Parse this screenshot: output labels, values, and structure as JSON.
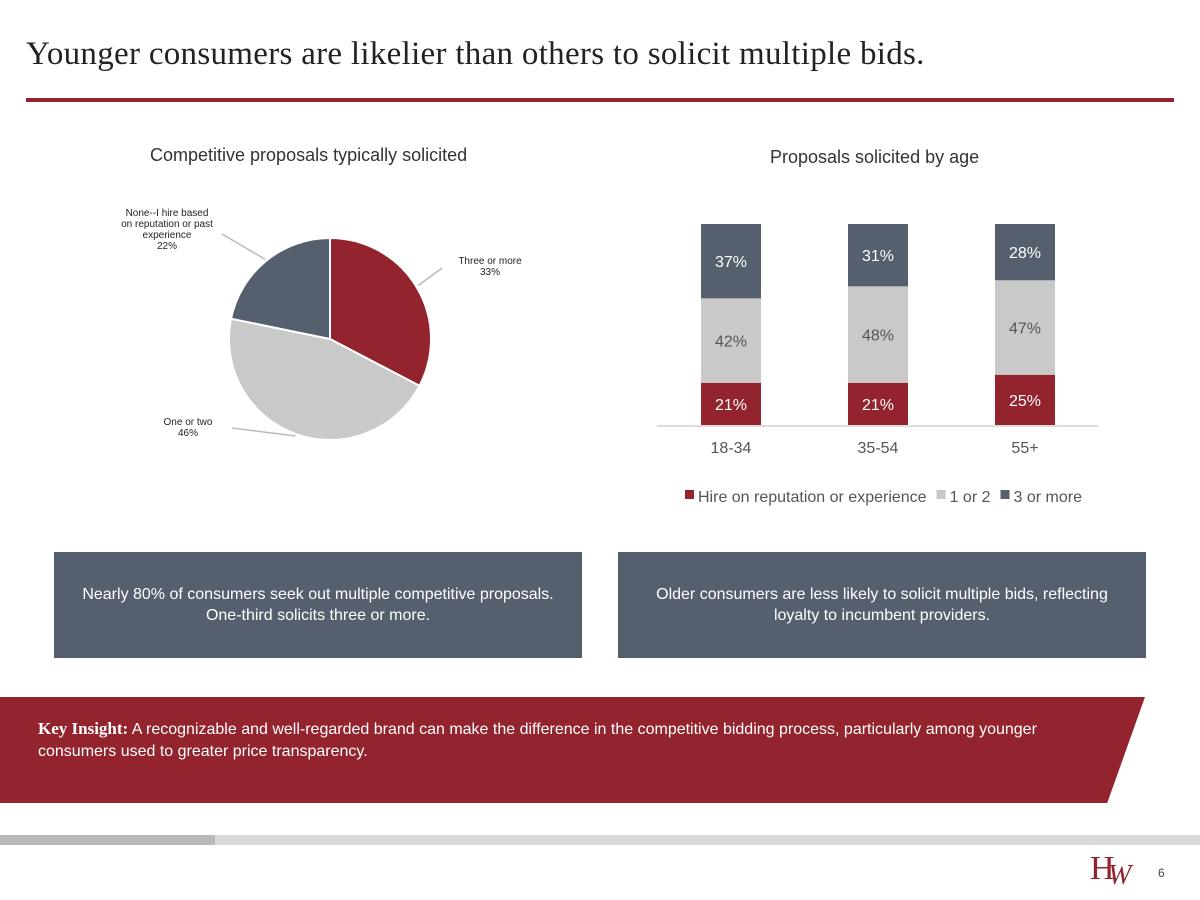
{
  "slide": {
    "title": "Younger consumers are likelier than others to solicit multiple bids.",
    "page_number": "6",
    "logo_text": "HW"
  },
  "colors": {
    "red": "#93232c",
    "light_gray": "#c9c9c9",
    "slate": "#555f6d"
  },
  "chart_data": [
    {
      "type": "pie",
      "title": "Competitive proposals typically solicited",
      "slices": [
        {
          "label_lines": [
            "Three or more",
            "33%"
          ],
          "value": 33,
          "color": "#93232c"
        },
        {
          "label_lines": [
            "One or two",
            "46%"
          ],
          "value": 46,
          "color": "#c9c9c9"
        },
        {
          "label_lines": [
            "None--I hire based",
            "on reputation or past",
            "experience",
            "22%"
          ],
          "value": 22,
          "color": "#555f6d"
        }
      ]
    },
    {
      "type": "bar",
      "stacked": true,
      "title": "Proposals solicited by age",
      "categories": [
        "18-34",
        "35-54",
        "55+"
      ],
      "series": [
        {
          "name": "Hire on reputation or experience",
          "values": [
            21,
            21,
            25
          ],
          "labels": [
            "21%",
            "21%",
            "25%"
          ],
          "color": "#93232c"
        },
        {
          "name": "1 or 2",
          "values": [
            42,
            48,
            47
          ],
          "labels": [
            "42%",
            "48%",
            "47%"
          ],
          "color": "#c9c9c9"
        },
        {
          "name": "3 or more",
          "values": [
            37,
            31,
            28
          ],
          "labels": [
            "37%",
            "31%",
            "28%"
          ],
          "color": "#555f6d"
        }
      ],
      "ylim": [
        0,
        100
      ],
      "legend": "bottom",
      "grid": false
    }
  ],
  "notes": {
    "left_lines": [
      "Nearly 80% of consumers seek out multiple competitive proposals.",
      "One-third solicits three or more."
    ],
    "right_lines": [
      "Older consumers are less likely to solicit multiple bids, reflecting",
      "loyalty to incumbent providers."
    ]
  },
  "insight": {
    "heading": "Key Insight:",
    "text": " A recognizable and well-regarded brand can make the difference in the competitive bidding process, particularly among younger consumers used to greater price transparency."
  }
}
